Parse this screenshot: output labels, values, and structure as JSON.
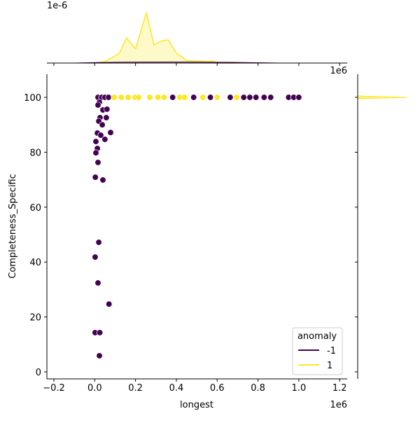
{
  "chart_data": {
    "type": "scatter",
    "subtype": "jointplot",
    "xlabel": "longest",
    "ylabel": "Completeness_Specific",
    "x_offset_label": "1e6",
    "top_marginal_offset_label": "1e-6",
    "top_marginal_x_offset_label": "1e6",
    "xlim": [
      -0.23,
      1.23
    ],
    "ylim": [
      -3,
      108
    ],
    "x_ticks": [
      -0.2,
      0.0,
      0.2,
      0.4,
      0.6,
      0.8,
      1.0,
      1.2
    ],
    "x_tick_labels": [
      "−0.2",
      "0.0",
      "0.2",
      "0.4",
      "0.6",
      "0.8",
      "1.0",
      "1.2"
    ],
    "y_ticks": [
      0,
      20,
      40,
      60,
      80,
      100
    ],
    "y_tick_labels": [
      "0",
      "20",
      "40",
      "60",
      "80",
      "100"
    ],
    "grid": false,
    "legend": {
      "title": "anomaly",
      "placement": "lower-right",
      "entries": [
        {
          "label": "-1",
          "color": "#440154"
        },
        {
          "label": "1",
          "color": "#fde725"
        }
      ]
    },
    "colors": {
      "-1": "#440154",
      "1": "#fde725"
    },
    "series": [
      {
        "name": "-1",
        "points": [
          [
            0.016,
            100
          ],
          [
            0.034,
            100
          ],
          [
            0.05,
            100
          ],
          [
            0.068,
            100
          ],
          [
            0.382,
            100
          ],
          [
            0.485,
            100
          ],
          [
            0.567,
            100
          ],
          [
            0.664,
            100
          ],
          [
            0.73,
            100
          ],
          [
            0.76,
            100
          ],
          [
            0.79,
            100
          ],
          [
            0.83,
            100
          ],
          [
            0.862,
            100
          ],
          [
            0.95,
            100
          ],
          [
            0.975,
            100
          ],
          [
            1.0,
            100
          ],
          [
            0.023,
            98.2
          ],
          [
            0.016,
            97.2
          ],
          [
            0.04,
            95.4
          ],
          [
            0.06,
            95.7
          ],
          [
            0.026,
            92.6
          ],
          [
            0.057,
            92.6
          ],
          [
            0.02,
            91.3
          ],
          [
            0.037,
            90
          ],
          [
            0.013,
            87
          ],
          [
            0.03,
            86.2
          ],
          [
            0.078,
            87.2
          ],
          [
            0.05,
            84.7
          ],
          [
            0.006,
            83.9
          ],
          [
            0.013,
            81.4
          ],
          [
            0.006,
            79.8
          ],
          [
            0.016,
            76.3
          ],
          [
            0.003,
            70.9
          ],
          [
            0.04,
            69.9
          ],
          [
            0.02,
            47.2
          ],
          [
            0.002,
            41.8
          ],
          [
            0.016,
            32.4
          ],
          [
            0.07,
            24.7
          ],
          [
            0.002,
            14.3
          ],
          [
            0.025,
            14.3
          ],
          [
            0.023,
            5.9
          ]
        ]
      },
      {
        "name": "1",
        "points": [
          [
            0.095,
            100
          ],
          [
            0.13,
            100
          ],
          [
            0.164,
            100
          ],
          [
            0.198,
            100
          ],
          [
            0.215,
            100
          ],
          [
            0.27,
            100
          ],
          [
            0.31,
            100
          ],
          [
            0.34,
            100
          ],
          [
            0.416,
            100
          ],
          [
            0.44,
            100
          ],
          [
            0.53,
            100
          ],
          [
            0.6,
            100
          ],
          [
            0.695,
            100
          ]
        ]
      }
    ],
    "top_kde_1": {
      "x": [
        0.0,
        0.05,
        0.085,
        0.12,
        0.156,
        0.2,
        0.253,
        0.29,
        0.32,
        0.36,
        0.4,
        0.45,
        0.55,
        0.58,
        0.6,
        0.7
      ],
      "density_rel": [
        0,
        0.03,
        0.11,
        0.19,
        0.5,
        0.28,
        1.0,
        0.36,
        0.43,
        0.46,
        0.2,
        0.05,
        0.03,
        0.04,
        0.0,
        0
      ]
    },
    "right_kde_1": {
      "y_peak": 100
    }
  }
}
